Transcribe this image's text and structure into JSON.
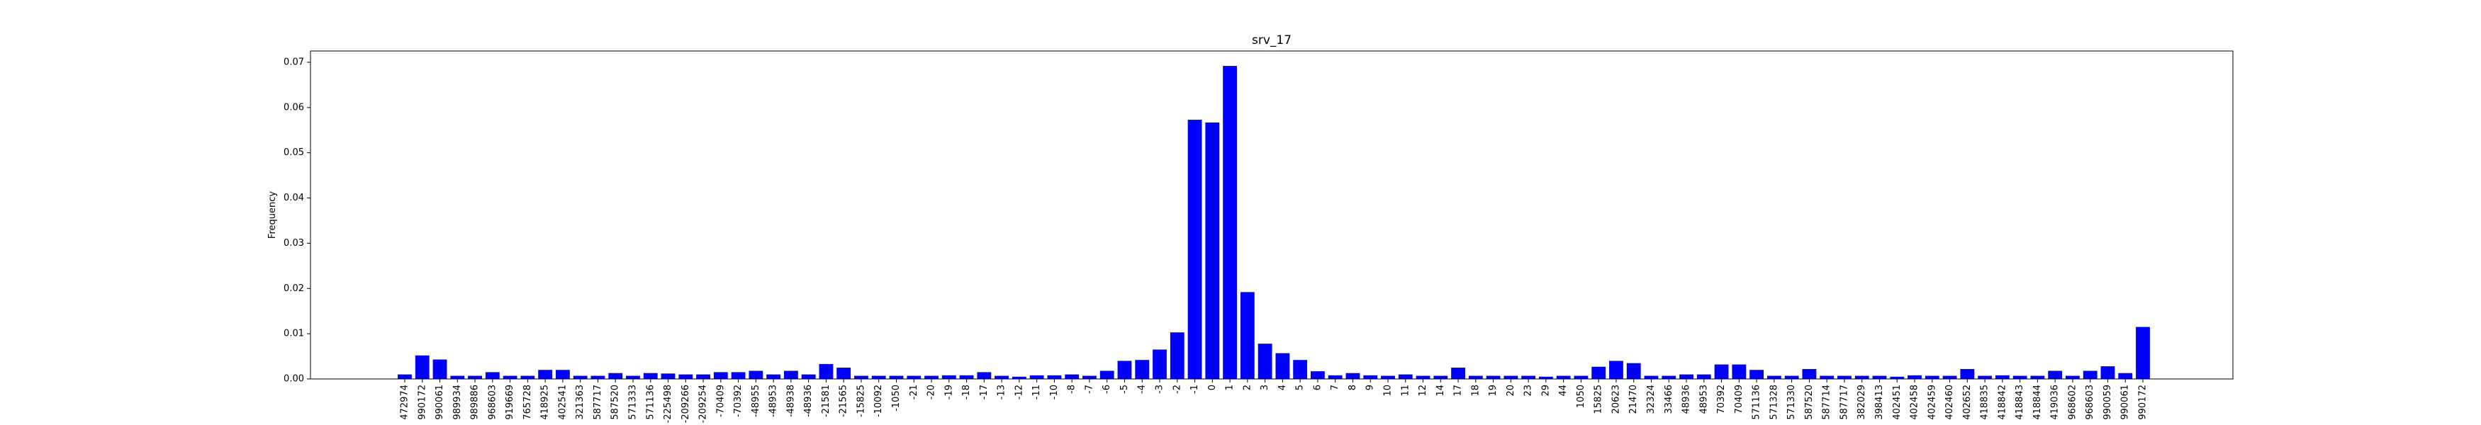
{
  "chart_data": {
    "type": "bar",
    "title": "srv_17",
    "xlabel": "",
    "ylabel": "Frequency",
    "ylim": [
      0,
      0.0725
    ],
    "yticks": [
      0.0,
      0.01,
      0.02,
      0.03,
      0.04,
      0.05,
      0.06,
      0.07
    ],
    "ytick_labels": [
      "0.00",
      "0.01",
      "0.02",
      "0.03",
      "0.04",
      "0.05",
      "0.06",
      "0.07"
    ],
    "grid": false,
    "bar_color": "#0000ff",
    "categories": [
      "472974",
      "990172",
      "990061",
      "989934",
      "989886",
      "968603",
      "919669",
      "765728",
      "418925",
      "402541",
      "321363",
      "587717",
      "587520",
      "571333",
      "571136",
      "-225498",
      "-209266",
      "-209254",
      "-70409",
      "-70392",
      "-48955",
      "-48953",
      "-48938",
      "-48936",
      "-21581",
      "-21565",
      "-15825",
      "-10092",
      "-1050",
      "-21",
      "-20",
      "-19",
      "-18",
      "-17",
      "-13",
      "-12",
      "-11",
      "-10",
      "-8",
      "-7",
      "-6",
      "-5",
      "-4",
      "-3",
      "-2",
      "-1",
      "0",
      "1",
      "2",
      "3",
      "4",
      "5",
      "6",
      "7",
      "8",
      "9",
      "10",
      "11",
      "12",
      "14",
      "17",
      "18",
      "19",
      "20",
      "23",
      "29",
      "44",
      "1050",
      "15825",
      "20623",
      "21470",
      "32324",
      "33466",
      "48936",
      "48953",
      "70392",
      "70409",
      "571136",
      "571328",
      "571330",
      "587520",
      "587714",
      "587717",
      "382029",
      "398413",
      "402451",
      "402458",
      "402459",
      "402460",
      "402652",
      "418835",
      "418842",
      "418843",
      "418844",
      "419036",
      "968602",
      "968603",
      "990059",
      "990061",
      "990172"
    ],
    "values": [
      0.001,
      0.0052,
      0.0043,
      0.0007,
      0.0007,
      0.0015,
      0.0007,
      0.0007,
      0.002,
      0.002,
      0.0007,
      0.0007,
      0.0013,
      0.0007,
      0.0013,
      0.0012,
      0.001,
      0.001,
      0.0015,
      0.0015,
      0.0018,
      0.001,
      0.0018,
      0.001,
      0.0033,
      0.0025,
      0.0007,
      0.0007,
      0.0007,
      0.0007,
      0.0007,
      0.0008,
      0.0008,
      0.0015,
      0.0007,
      0.0005,
      0.0008,
      0.0008,
      0.001,
      0.0007,
      0.0018,
      0.004,
      0.0042,
      0.0065,
      0.0103,
      0.0573,
      0.0567,
      0.0692,
      0.0192,
      0.0078,
      0.0057,
      0.0042,
      0.0017,
      0.0008,
      0.0013,
      0.0008,
      0.0007,
      0.001,
      0.0007,
      0.0007,
      0.0025,
      0.0007,
      0.0007,
      0.0007,
      0.0007,
      0.0005,
      0.0007,
      0.0007,
      0.0027,
      0.004,
      0.0035,
      0.0007,
      0.0007,
      0.001,
      0.001,
      0.0032,
      0.0032,
      0.002,
      0.0007,
      0.0007,
      0.0022,
      0.0007,
      0.0007,
      0.0007,
      0.0007,
      0.0005,
      0.0008,
      0.0007,
      0.0007,
      0.0022,
      0.0007,
      0.0008,
      0.0007,
      0.0007,
      0.0018,
      0.0007,
      0.0018,
      0.0028,
      0.0013,
      0.0115
    ]
  }
}
